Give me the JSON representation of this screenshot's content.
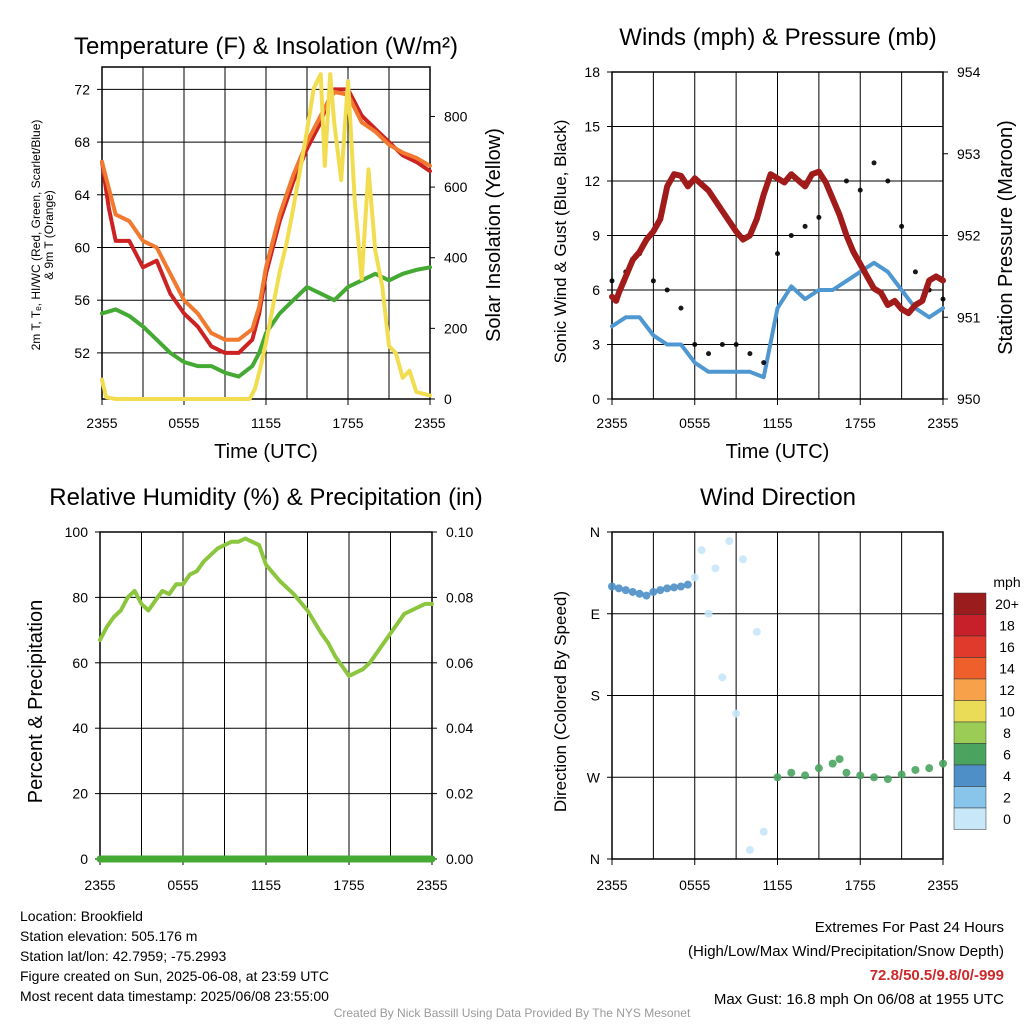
{
  "chart_data": [
    {
      "type": "line",
      "title": "Temperature (F) & Insolation (W/m²)",
      "xlabel": "Time (UTC)",
      "ylabel_left_lines": [
        "2m T, Tₑ, HI/WC (Red, Green, Scarlet/Blue)",
        "& 9m T (Orange)"
      ],
      "ylabel_right": "Solar Insolation (Yellow)",
      "x_ticks": [
        "2355",
        "0555",
        "1155",
        "1755",
        "2355"
      ],
      "y_ticks": [
        "52",
        "56",
        "60",
        "64",
        "68",
        "72"
      ],
      "y_right_ticks": [
        "0",
        "200",
        "400",
        "600",
        "800"
      ],
      "ylim": [
        48.5,
        73.7
      ],
      "y_right_lim": [
        0,
        940
      ],
      "x_hours": [
        0,
        24
      ],
      "grid": true,
      "series": [
        {
          "color": "#cc2222",
          "axis": "left",
          "x": [
            0,
            0.5,
            1,
            2,
            3,
            4,
            5,
            6,
            7,
            8,
            9,
            10,
            11,
            11.5,
            12,
            13,
            14,
            15,
            16,
            16.5,
            17,
            18,
            19,
            20,
            21,
            22,
            23,
            24
          ],
          "y": [
            66.5,
            63,
            60.5,
            60.5,
            58.5,
            59,
            56.5,
            55,
            54,
            52.5,
            52,
            52,
            53,
            55,
            58,
            62,
            65,
            67.5,
            69.5,
            71,
            72,
            72,
            70,
            69,
            68,
            67,
            66.5,
            65.8
          ]
        },
        {
          "color": "#f27a30",
          "axis": "left",
          "x": [
            0,
            0.5,
            1,
            2,
            3,
            4,
            5,
            6,
            7,
            8,
            9,
            10,
            11,
            11.5,
            12,
            13,
            14,
            15,
            16,
            16.5,
            17,
            18,
            19,
            20,
            21,
            22,
            23,
            24
          ],
          "y": [
            66.5,
            64.5,
            62.5,
            62,
            60.5,
            60,
            58,
            56,
            55,
            53.5,
            53,
            53,
            53.8,
            55.5,
            58.5,
            62.5,
            65.5,
            68,
            70,
            71,
            71.8,
            71.6,
            69.5,
            68.8,
            67.8,
            67.2,
            66.8,
            66.2
          ]
        },
        {
          "color": "#44aa33",
          "axis": "left",
          "x": [
            0,
            1,
            2,
            3,
            4,
            5,
            6,
            7,
            8,
            9,
            10,
            11,
            11.5,
            12,
            13,
            14,
            15,
            16,
            17,
            18,
            19,
            20,
            21,
            22,
            23,
            24
          ],
          "y": [
            55,
            55.3,
            54.8,
            54,
            53,
            52,
            51.3,
            51,
            51,
            50.5,
            50.2,
            51,
            52,
            53.5,
            55,
            56,
            57,
            56.5,
            56,
            57,
            57.5,
            58,
            57.5,
            58,
            58.3,
            58.5
          ]
        },
        {
          "color": "#f2dd50",
          "axis": "right",
          "x": [
            0,
            0.3,
            1,
            3,
            6,
            9,
            10.8,
            11.2,
            11.6,
            12,
            12.5,
            13,
            13.5,
            14,
            14.5,
            15,
            15.5,
            16,
            16.3,
            16.7,
            17,
            17.5,
            18,
            18.5,
            19,
            19.5,
            20,
            20.5,
            21,
            21.5,
            22,
            22.5,
            23,
            24
          ],
          "y": [
            55,
            5,
            0,
            0,
            0,
            0,
            0,
            30,
            90,
            160,
            260,
            360,
            440,
            540,
            650,
            760,
            880,
            920,
            660,
            920,
            780,
            620,
            900,
            560,
            340,
            650,
            420,
            320,
            150,
            130,
            60,
            80,
            20,
            10
          ]
        }
      ]
    },
    {
      "type": "line",
      "title": "Winds (mph) & Pressure (mb)",
      "xlabel": "Time (UTC)",
      "ylabel_left": "Sonic Wind & Gust (Blue, Black)",
      "ylabel_right": "Station Pressure (Maroon)",
      "x_ticks": [
        "2355",
        "0555",
        "1155",
        "1755",
        "2355"
      ],
      "y_ticks": [
        "0",
        "3",
        "6",
        "9",
        "12",
        "15",
        "18"
      ],
      "y_right_ticks": [
        "950",
        "951",
        "952",
        "953",
        "954"
      ],
      "ylim": [
        0,
        18
      ],
      "y_right_lim": [
        950,
        954
      ],
      "grid": true,
      "series": [
        {
          "color": "#4f97d0",
          "axis": "left",
          "x": [
            0,
            1,
            2,
            3,
            4,
            5,
            6,
            7,
            8,
            9,
            10,
            11,
            12,
            13,
            14,
            15,
            16,
            17,
            18,
            19,
            20,
            21,
            22,
            23,
            24
          ],
          "y": [
            4,
            4.5,
            4.5,
            3.5,
            3,
            3,
            2,
            1.5,
            1.5,
            1.5,
            1.5,
            1.2,
            5,
            6.2,
            5.5,
            6,
            6,
            6.5,
            7,
            7.5,
            7,
            6,
            5,
            4.5,
            5
          ]
        },
        {
          "color": "#000000",
          "axis": "left",
          "mode": "points",
          "x": [
            0,
            1,
            2,
            3,
            4,
            5,
            6,
            7,
            8,
            9,
            10,
            11,
            12,
            13,
            14,
            15,
            16,
            17,
            18,
            19,
            20,
            21,
            22,
            23,
            24
          ],
          "y": [
            6.5,
            7,
            8,
            6.5,
            6,
            5,
            3,
            2.5,
            3,
            3,
            2.5,
            2,
            8,
            9,
            9.5,
            10,
            11,
            12,
            11.5,
            13,
            12,
            9.5,
            7,
            6,
            5.5
          ]
        },
        {
          "color": "#a11b1b",
          "axis": "right",
          "x": [
            0,
            0.3,
            0.5,
            1,
            1.5,
            2,
            2.5,
            3,
            3.5,
            4,
            4.5,
            5,
            5.5,
            6,
            7,
            8,
            9,
            9.5,
            10,
            10.5,
            11,
            11.5,
            12,
            12.5,
            13,
            14,
            14.5,
            15,
            15.5,
            16,
            16.5,
            17,
            17.5,
            18,
            18.5,
            19,
            19.5,
            20,
            20.5,
            21,
            21.5,
            22,
            22.5,
            23,
            23.5,
            24
          ],
          "y": [
            951.25,
            951.2,
            951.3,
            951.5,
            951.7,
            951.8,
            951.95,
            952.05,
            952.2,
            952.6,
            952.75,
            952.73,
            952.6,
            952.7,
            952.55,
            952.3,
            952.05,
            951.95,
            952.0,
            952.2,
            952.5,
            952.75,
            952.7,
            952.65,
            952.75,
            952.6,
            952.75,
            952.78,
            952.65,
            952.45,
            952.25,
            952.0,
            951.8,
            951.65,
            951.5,
            951.35,
            951.3,
            951.15,
            951.2,
            951.1,
            951.05,
            951.15,
            951.2,
            951.45,
            951.5,
            951.45
          ]
        }
      ]
    },
    {
      "type": "line",
      "title": "Relative Humidity (%) & Precipitation (in)",
      "ylabel_left": "Percent & Precipitation",
      "x_ticks": [
        "2355",
        "0555",
        "1155",
        "1755",
        "2355"
      ],
      "y_ticks": [
        "0",
        "20",
        "40",
        "60",
        "80",
        "100"
      ],
      "y_right_ticks": [
        "0.00",
        "0.02",
        "0.04",
        "0.06",
        "0.08",
        "0.10"
      ],
      "ylim": [
        0,
        100
      ],
      "y_right_lim": [
        0,
        0.1
      ],
      "grid": true,
      "series": [
        {
          "color": "#8cc63f",
          "axis": "left",
          "x": [
            0,
            0.5,
            1,
            1.5,
            2,
            2.5,
            3,
            3.5,
            4,
            4.5,
            5,
            5.5,
            6,
            6.5,
            7,
            7.5,
            8,
            8.5,
            9,
            9.5,
            10,
            10.5,
            11,
            11.5,
            12,
            13,
            14,
            15,
            16,
            16.5,
            17,
            17.5,
            18,
            18.5,
            19,
            19.5,
            20,
            20.5,
            21,
            21.5,
            22,
            22.5,
            23,
            23.5,
            24
          ],
          "y": [
            67,
            71,
            74,
            76,
            80,
            82,
            78,
            76,
            79,
            82,
            81,
            84,
            84,
            87,
            88,
            91,
            93,
            95,
            96,
            97,
            97,
            98,
            97,
            96,
            90,
            85,
            81,
            76,
            69,
            66,
            62,
            59,
            56,
            57,
            58,
            60,
            63,
            66,
            69,
            72,
            75,
            76,
            77,
            78,
            78
          ]
        },
        {
          "color": "#44aa33",
          "axis": "right",
          "x": [
            0,
            24
          ],
          "y": [
            0,
            0
          ]
        }
      ]
    },
    {
      "type": "scatter",
      "title": "Wind Direction",
      "ylabel_left": "Direction (Colored By Speed)",
      "x_ticks": [
        "2355",
        "0555",
        "1155",
        "1755",
        "2355"
      ],
      "y_ticks": [
        "N",
        "E",
        "S",
        "W",
        "N"
      ],
      "ylim": [
        0,
        360
      ],
      "legend_title": "mph",
      "legend_labels": [
        "20+",
        "18",
        "16",
        "14",
        "12",
        "10",
        "8",
        "6",
        "4",
        "2",
        "0"
      ],
      "legend_colors": [
        "#9b1c1c",
        "#c8202a",
        "#e03a2c",
        "#ef5f2c",
        "#f7a24a",
        "#ebdc58",
        "#9bcc55",
        "#4aa460",
        "#4d8fc6",
        "#89c4ea",
        "#c8e7f8"
      ],
      "grid": true,
      "series": [
        {
          "color": "#4d8fc6",
          "x": [
            0,
            0.5,
            1,
            1.5,
            2,
            2.5,
            3,
            3.5,
            4,
            4.5,
            5,
            5.5
          ],
          "y": [
            300,
            298,
            296,
            294,
            292,
            290,
            294,
            296,
            298,
            299,
            300,
            302
          ]
        },
        {
          "color": "#c8e7f8",
          "x": [
            6,
            6.5,
            7,
            7.5,
            8,
            8.5,
            9,
            9.5,
            10,
            10.5,
            11
          ],
          "y": [
            310,
            340,
            270,
            320,
            200,
            350,
            160,
            330,
            10,
            250,
            30
          ]
        },
        {
          "color": "#4aa460",
          "x": [
            12,
            13,
            14,
            15,
            16,
            16.5,
            17,
            18,
            19,
            20,
            21,
            22,
            23,
            24
          ],
          "y": [
            90,
            95,
            92,
            100,
            105,
            110,
            95,
            92,
            90,
            88,
            93,
            98,
            100,
            105
          ]
        }
      ]
    }
  ],
  "footer": {
    "location": "Location: Brookfield",
    "elevation": "Station elevation: 505.176 m",
    "latlon": "Station lat/lon: 42.7959; -75.2993",
    "created": "Figure created on Sun, 2025-06-08, at 23:59 UTC",
    "recent": "Most recent data timestamp: 2025/06/08 23:55:00",
    "extremes_title": "Extremes For Past 24 Hours",
    "extremes_desc": "(High/Low/Max Wind/Precipitation/Snow Depth)",
    "extremes_values": "72.8/50.5/9.8/0/-999",
    "max_gust": "Max Gust: 16.8 mph On 06/08 at 1955 UTC",
    "credit": "Created By Nick Bassill Using Data Provided By The NYS Mesonet"
  }
}
